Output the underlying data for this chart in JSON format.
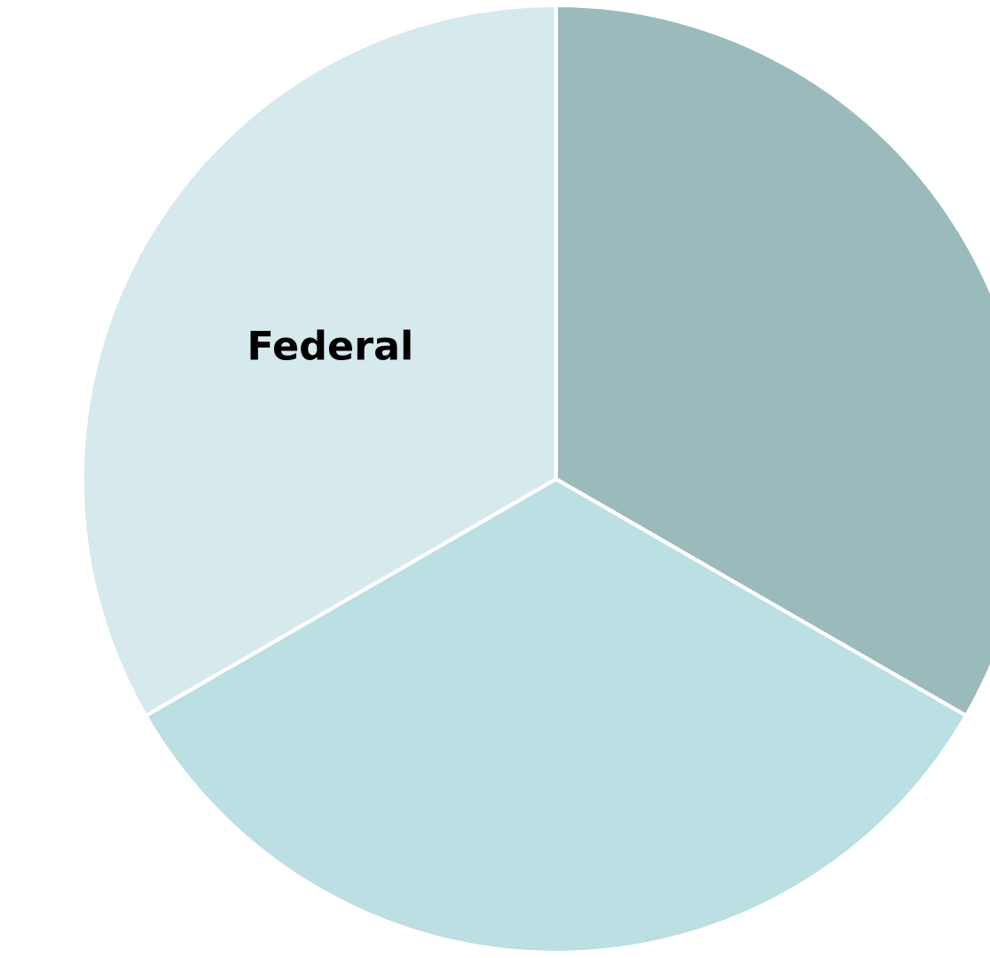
{
  "chart_data": {
    "type": "pie",
    "categories": [
      null,
      null,
      "Federal"
    ],
    "values": [
      33.33,
      33.34,
      33.33
    ],
    "colors": [
      "#9bbabb",
      "#bbdfe2",
      "#d6e9ed"
    ]
  }
}
